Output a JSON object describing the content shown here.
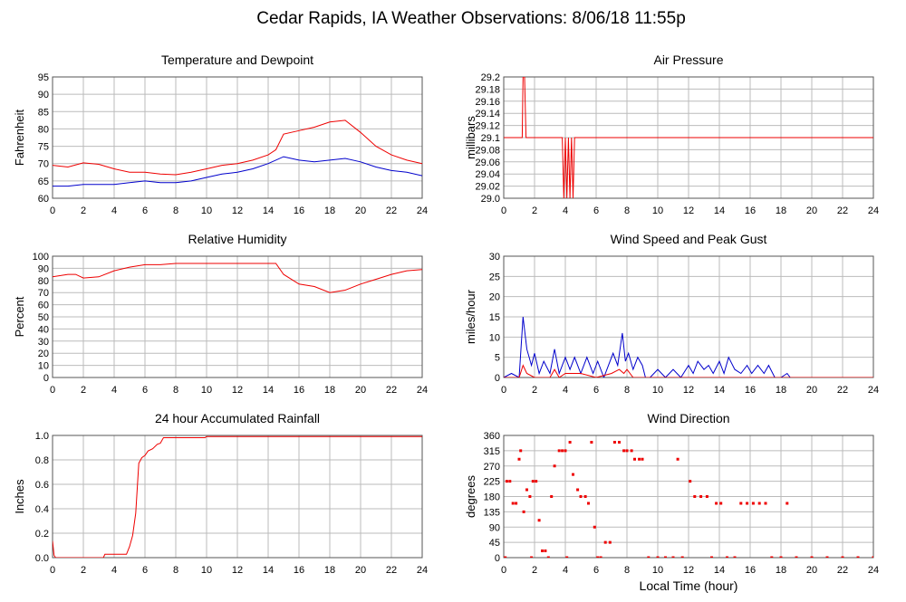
{
  "title": "Cedar Rapids, IA Weather Observations: 8/06/18 11:55p",
  "x_axis": {
    "ticks": [
      0,
      2,
      4,
      6,
      8,
      10,
      12,
      14,
      16,
      18,
      20,
      22,
      24
    ],
    "label": "Local Time (hour)"
  },
  "colors": {
    "red": "#ee0000",
    "blue": "#0000cc",
    "grid": "#bbbbbb",
    "frame": "#555555"
  },
  "chart_data": [
    {
      "type": "line",
      "title": "Temperature and Dewpoint",
      "ylabel": "Fahrenheit",
      "ylim": [
        60,
        95
      ],
      "xlim": [
        0,
        24
      ],
      "y_ticks": [
        "95",
        "90",
        "85",
        "80",
        "75",
        "70",
        "65",
        "60"
      ],
      "series": [
        {
          "color": "red",
          "x": [
            0,
            1,
            2,
            3,
            4,
            5,
            6,
            7,
            8,
            9,
            10,
            11,
            12,
            13,
            14,
            14.5,
            15,
            16,
            17,
            18,
            19,
            20,
            21,
            22,
            23,
            24
          ],
          "y": [
            69.5,
            69,
            70.2,
            69.8,
            68.5,
            67.5,
            67.5,
            67,
            66.8,
            67.5,
            68.5,
            69.5,
            70,
            71,
            72.5,
            74,
            78.5,
            79.5,
            80.5,
            82,
            82.5,
            79,
            75,
            72.5,
            71,
            70
          ]
        },
        {
          "color": "blue",
          "x": [
            0,
            1,
            2,
            3,
            4,
            5,
            6,
            7,
            8,
            9,
            10,
            11,
            12,
            13,
            14,
            15,
            16,
            17,
            18,
            19,
            20,
            21,
            22,
            23,
            24
          ],
          "y": [
            63.5,
            63.5,
            64,
            64,
            64,
            64.5,
            65,
            64.5,
            64.5,
            65,
            66,
            67,
            67.5,
            68.5,
            70,
            72,
            71,
            70.5,
            71,
            71.5,
            70.5,
            69,
            68,
            67.5,
            66.5
          ]
        }
      ]
    },
    {
      "type": "line",
      "title": "Air Pressure",
      "ylabel": "millibars",
      "ylim": [
        29.0,
        29.2
      ],
      "xlim": [
        0,
        24
      ],
      "y_ticks": [
        "29.2",
        "29.18",
        "29.16",
        "29.14",
        "29.12",
        "29.1",
        "29.08",
        "29.06",
        "29.04",
        "29.02",
        "29.0"
      ],
      "series": [
        {
          "color": "red",
          "x": [
            0,
            1.2,
            1.25,
            1.35,
            1.45,
            3.8,
            3.9,
            4.0,
            4.1,
            4.2,
            4.3,
            4.4,
            4.5,
            4.6,
            4.7,
            24
          ],
          "y": [
            29.1,
            29.1,
            29.2,
            29.2,
            29.1,
            29.1,
            29.0,
            29.1,
            29.0,
            29.1,
            29.0,
            29.1,
            29.0,
            29.1,
            29.1,
            29.1
          ]
        }
      ]
    },
    {
      "type": "line",
      "title": "Relative Humidity",
      "ylabel": "Percent",
      "ylim": [
        0,
        100
      ],
      "xlim": [
        0,
        24
      ],
      "y_ticks": [
        "100",
        "90",
        "80",
        "70",
        "60",
        "50",
        "40",
        "30",
        "20",
        "10",
        "0"
      ],
      "series": [
        {
          "color": "red",
          "x": [
            0,
            1,
            1.5,
            2,
            3,
            4,
            5,
            6,
            7,
            8,
            9,
            10,
            11,
            12,
            13,
            14,
            14.5,
            15,
            16,
            17,
            18,
            19,
            20,
            21,
            22,
            23,
            24
          ],
          "y": [
            83,
            85,
            85,
            82,
            83,
            88,
            91,
            93,
            93,
            94,
            94,
            94,
            94,
            94,
            94,
            94,
            94,
            85,
            77,
            75,
            70,
            72,
            77,
            81,
            85,
            88,
            89
          ]
        }
      ]
    },
    {
      "type": "line",
      "title": "Wind Speed and Peak Gust",
      "ylabel": "miles/hour",
      "ylim": [
        0,
        30
      ],
      "xlim": [
        0,
        24
      ],
      "y_ticks": [
        "30",
        "25",
        "20",
        "15",
        "10",
        "5",
        "0"
      ],
      "series": [
        {
          "color": "blue",
          "x": [
            0,
            0.5,
            1,
            1.25,
            1.5,
            1.8,
            2,
            2.3,
            2.6,
            3,
            3.3,
            3.6,
            4,
            4.3,
            4.6,
            5,
            5.4,
            5.8,
            6.1,
            6.5,
            6.8,
            7.1,
            7.4,
            7.7,
            7.9,
            8.1,
            8.4,
            8.7,
            9,
            9.2,
            9.5,
            10,
            10.5,
            11,
            11.5,
            12,
            12.3,
            12.6,
            13,
            13.3,
            13.6,
            14,
            14.3,
            14.6,
            15,
            15.4,
            15.8,
            16.1,
            16.5,
            16.9,
            17.2,
            17.6,
            18,
            18.4,
            18.6,
            24
          ],
          "y": [
            0,
            1,
            0,
            15,
            7,
            3,
            6,
            1,
            4,
            1,
            7,
            1,
            5,
            2,
            5,
            1,
            5,
            1,
            4,
            0,
            3,
            6,
            3,
            11,
            4,
            6,
            2,
            5,
            3,
            0,
            0,
            2,
            0,
            2,
            0,
            3,
            1,
            4,
            2,
            3,
            1,
            4,
            1,
            5,
            2,
            1,
            3,
            1,
            3,
            1,
            3,
            0,
            0,
            1,
            0,
            0
          ]
        },
        {
          "color": "red",
          "x": [
            0,
            1,
            1.25,
            1.5,
            2,
            3,
            3.3,
            3.6,
            4,
            5,
            6,
            7,
            7.5,
            7.8,
            8,
            8.4,
            9,
            24
          ],
          "y": [
            0,
            0,
            3,
            1,
            0,
            0,
            2,
            0,
            1,
            1,
            0,
            1,
            2,
            1,
            2,
            0,
            0,
            0
          ]
        }
      ]
    },
    {
      "type": "line",
      "title": "24 hour Accumulated Rainfall",
      "ylabel": "Inches",
      "ylim": [
        0,
        1.1
      ],
      "xlim": [
        0,
        24
      ],
      "y_ticks": [
        "1.0",
        "0.8",
        "0.6",
        "0.4",
        "0.2",
        "0.0"
      ],
      "series": [
        {
          "color": "red",
          "x": [
            0,
            0.1,
            0.2,
            3.3,
            3.4,
            4.8,
            5.0,
            5.2,
            5.4,
            5.6,
            5.8,
            6.0,
            6.2,
            6.5,
            6.8,
            7.0,
            7.2,
            7.5,
            9.9,
            10,
            24
          ],
          "y": [
            0.15,
            0.02,
            0,
            0,
            0.03,
            0.03,
            0.1,
            0.2,
            0.4,
            0.85,
            0.9,
            0.92,
            0.96,
            0.98,
            1.02,
            1.03,
            1.08,
            1.08,
            1.08,
            1.09,
            1.09
          ]
        }
      ]
    },
    {
      "type": "scatter",
      "title": "Wind Direction",
      "ylabel": "degrees",
      "xlabel": "Local Time (hour)",
      "ylim": [
        0,
        360
      ],
      "xlim": [
        0,
        24
      ],
      "y_ticks": [
        "360",
        "315",
        "270",
        "225",
        "180",
        "135",
        "90",
        "45",
        "0"
      ],
      "series": [
        {
          "color": "red",
          "points": [
            [
              0.1,
              0
            ],
            [
              0.2,
              225
            ],
            [
              0.4,
              225
            ],
            [
              0.6,
              160
            ],
            [
              0.8,
              160
            ],
            [
              1.0,
              290
            ],
            [
              1.1,
              315
            ],
            [
              1.3,
              135
            ],
            [
              1.5,
              200
            ],
            [
              1.7,
              180
            ],
            [
              1.8,
              0
            ],
            [
              1.9,
              225
            ],
            [
              2.1,
              225
            ],
            [
              2.3,
              110
            ],
            [
              2.5,
              20
            ],
            [
              2.7,
              20
            ],
            [
              2.9,
              0
            ],
            [
              3.1,
              180
            ],
            [
              3.3,
              270
            ],
            [
              3.6,
              315
            ],
            [
              3.8,
              315
            ],
            [
              4.0,
              315
            ],
            [
              4.1,
              0
            ],
            [
              4.3,
              340
            ],
            [
              4.5,
              245
            ],
            [
              4.8,
              200
            ],
            [
              5.0,
              180
            ],
            [
              5.3,
              180
            ],
            [
              5.5,
              160
            ],
            [
              5.7,
              340
            ],
            [
              5.9,
              90
            ],
            [
              6.1,
              0
            ],
            [
              6.3,
              0
            ],
            [
              6.6,
              45
            ],
            [
              6.9,
              45
            ],
            [
              7.2,
              340
            ],
            [
              7.5,
              340
            ],
            [
              7.8,
              315
            ],
            [
              8.0,
              315
            ],
            [
              8.3,
              315
            ],
            [
              8.5,
              290
            ],
            [
              8.8,
              290
            ],
            [
              9.0,
              290
            ],
            [
              9.4,
              0
            ],
            [
              10.0,
              0
            ],
            [
              10.5,
              0
            ],
            [
              11.0,
              0
            ],
            [
              11.3,
              290
            ],
            [
              11.6,
              0
            ],
            [
              12.1,
              225
            ],
            [
              12.4,
              180
            ],
            [
              12.8,
              180
            ],
            [
              13.2,
              180
            ],
            [
              13.5,
              0
            ],
            [
              13.8,
              160
            ],
            [
              14.1,
              160
            ],
            [
              14.5,
              0
            ],
            [
              15.0,
              0
            ],
            [
              15.4,
              160
            ],
            [
              15.8,
              160
            ],
            [
              16.2,
              160
            ],
            [
              16.6,
              160
            ],
            [
              17.0,
              160
            ],
            [
              17.4,
              0
            ],
            [
              18.0,
              0
            ],
            [
              18.4,
              160
            ],
            [
              19.0,
              0
            ],
            [
              20.0,
              0
            ],
            [
              21.0,
              0
            ],
            [
              22.0,
              0
            ],
            [
              23.0,
              0
            ],
            [
              24.0,
              0
            ]
          ]
        }
      ]
    }
  ]
}
